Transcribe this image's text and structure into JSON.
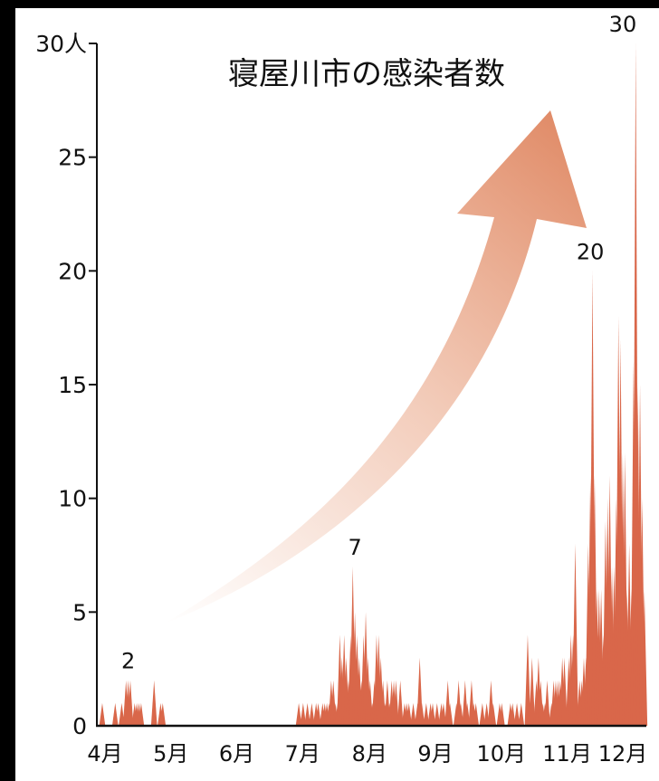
{
  "chart_data": {
    "type": "area",
    "title": "寝屋川市の感染者数",
    "ylabel": "",
    "xlabel": "",
    "y_unit": "人",
    "ylim": [
      0,
      30
    ],
    "yticks": [
      "0",
      "5",
      "10",
      "15",
      "20",
      "25",
      "30人"
    ],
    "month_labels": [
      "4月",
      "5月",
      "6月",
      "7月",
      "8月",
      "9月",
      "10月",
      "11月",
      "12月"
    ],
    "annotations": [
      {
        "label": "2",
        "day": 14,
        "value": 2
      },
      {
        "label": "7",
        "day": 119,
        "value": 7
      },
      {
        "label": "20",
        "day": 228,
        "value": 20
      },
      {
        "label": "30",
        "day": 243,
        "value": 30
      }
    ],
    "series": [
      {
        "values": [
          0,
          0,
          1,
          0,
          0,
          0,
          0,
          0,
          1,
          0,
          0,
          1,
          0,
          2,
          2,
          2,
          0,
          1,
          1,
          1,
          1,
          0,
          0,
          0,
          0,
          0,
          2,
          0,
          0,
          1,
          1,
          0,
          0,
          0,
          0,
          0,
          0,
          0,
          0,
          0,
          0,
          0,
          0,
          0,
          0,
          0,
          0,
          0,
          0,
          0,
          0,
          0,
          0,
          0,
          0,
          0,
          0,
          0,
          0,
          0,
          0,
          0,
          0,
          0,
          0,
          0,
          0,
          0,
          0,
          0,
          0,
          0,
          0,
          0,
          0,
          0,
          0,
          0,
          0,
          0,
          0,
          0,
          0,
          0,
          0,
          0,
          0,
          0,
          0,
          0,
          0,
          0,
          0,
          1,
          0,
          1,
          0,
          1,
          0,
          1,
          0,
          1,
          1,
          0,
          1,
          1,
          1,
          1,
          2,
          2,
          1,
          1,
          4,
          3,
          4,
          3,
          2,
          4,
          7,
          5,
          4,
          3,
          2,
          4,
          5,
          3,
          2,
          1,
          2,
          4,
          4,
          3,
          2,
          1,
          2,
          1,
          2,
          2,
          2,
          0,
          2,
          0,
          1,
          1,
          1,
          0,
          1,
          0,
          1,
          3,
          1,
          0,
          1,
          0,
          1,
          1,
          0,
          1,
          0,
          1,
          1,
          0,
          2,
          1,
          0,
          0,
          1,
          2,
          1,
          0,
          2,
          1,
          0,
          2,
          1,
          1,
          0,
          0,
          1,
          0,
          1,
          0,
          2,
          1,
          0,
          0,
          1,
          1,
          0,
          0,
          0,
          1,
          1,
          0,
          1,
          0,
          1,
          0,
          0,
          4,
          1,
          3,
          0,
          2,
          3,
          2,
          1,
          1,
          2,
          0,
          1,
          2,
          2,
          2,
          2,
          3,
          3,
          0,
          3,
          4,
          4,
          8,
          1,
          2,
          2,
          3,
          3,
          8,
          11,
          20,
          11,
          6,
          6,
          6,
          4,
          9,
          10,
          11,
          7,
          7,
          10,
          18,
          17,
          12,
          12,
          6,
          8,
          6,
          16,
          30,
          15,
          15,
          10,
          6
        ]
      }
    ]
  }
}
